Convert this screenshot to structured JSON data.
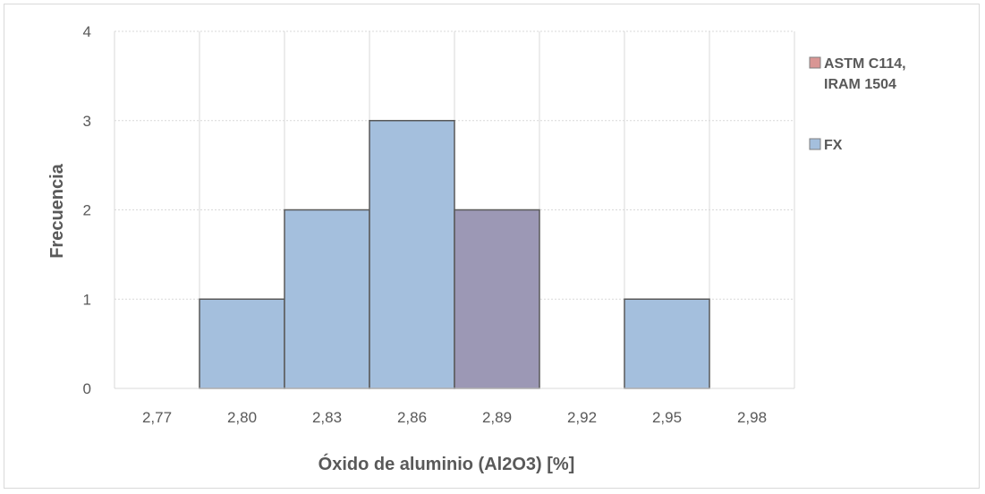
{
  "chart_data": {
    "type": "bar",
    "histogram": true,
    "categories": [
      "2,77",
      "2,80",
      "2,83",
      "2,86",
      "2,89",
      "2,92",
      "2,95",
      "2,98"
    ],
    "series": [
      {
        "name": "ASTM C114, IRAM 1504",
        "color": "#d99694",
        "values": [
          0,
          0,
          0,
          0,
          2,
          0,
          0,
          0
        ]
      },
      {
        "name": "FX",
        "color": "#a4bfdd",
        "values": [
          0,
          1,
          2,
          3,
          2,
          0,
          1,
          0
        ]
      }
    ],
    "overlap_color": "#9c98b5",
    "xlabel": "Óxido de aluminio (Al2O3) [%]",
    "ylabel": "Frecuencia",
    "ylim": [
      0,
      4
    ],
    "yticks": [
      "0",
      "1",
      "2",
      "3",
      "4"
    ],
    "grid": true,
    "legend_position": "right"
  }
}
